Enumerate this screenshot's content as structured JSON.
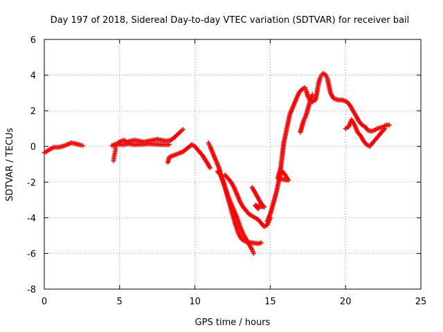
{
  "chart_data": {
    "type": "scatter",
    "title": "Day 197 of 2018, Sidereal Day-to-day VTEC variation (SDTVAR) for receiver bail",
    "xlabel": "GPS time / hours",
    "ylabel": "SDTVAR / TECUs",
    "xlim": [
      0,
      25
    ],
    "ylim": [
      -8,
      6
    ],
    "x_ticks": [
      0,
      5,
      10,
      15,
      20,
      25
    ],
    "y_ticks": [
      -8,
      -6,
      -4,
      -2,
      0,
      2,
      4,
      6
    ],
    "grid": true,
    "marker": "+",
    "color": "#ff0000",
    "series": [
      {
        "points": [
          [
            0.0,
            -0.35
          ],
          [
            0.3,
            -0.2
          ],
          [
            0.6,
            -0.05
          ],
          [
            0.9,
            -0.05
          ],
          [
            1.2,
            0.0
          ],
          [
            1.5,
            0.1
          ],
          [
            1.8,
            0.2
          ],
          [
            2.1,
            0.15
          ],
          [
            2.4,
            0.08
          ],
          [
            2.55,
            0.05
          ]
        ]
      },
      {
        "points": [
          [
            4.6,
            -0.8
          ],
          [
            4.65,
            -0.5
          ],
          [
            4.7,
            -0.3
          ],
          [
            4.75,
            0.0
          ],
          [
            4.8,
            0.1
          ],
          [
            4.9,
            0.2
          ],
          [
            5.1,
            0.3
          ],
          [
            5.3,
            0.35
          ],
          [
            5.5,
            0.25
          ],
          [
            5.7,
            0.3
          ],
          [
            6.0,
            0.35
          ],
          [
            6.3,
            0.3
          ],
          [
            6.6,
            0.25
          ],
          [
            6.9,
            0.3
          ],
          [
            7.2,
            0.35
          ],
          [
            7.5,
            0.4
          ],
          [
            7.8,
            0.35
          ],
          [
            8.1,
            0.3
          ],
          [
            8.4,
            0.35
          ],
          [
            8.7,
            0.55
          ],
          [
            9.0,
            0.8
          ],
          [
            9.2,
            0.95
          ],
          [
            4.5,
            0.05
          ],
          [
            4.8,
            0.15
          ],
          [
            5.2,
            0.1
          ],
          [
            5.6,
            0.15
          ],
          [
            6.0,
            0.1
          ],
          [
            6.5,
            0.12
          ],
          [
            7.0,
            0.15
          ],
          [
            7.5,
            0.12
          ],
          [
            8.0,
            0.1
          ],
          [
            8.3,
            0.1
          ]
        ]
      },
      {
        "points": [
          [
            8.2,
            -0.9
          ],
          [
            8.3,
            -0.6
          ],
          [
            8.6,
            -0.5
          ],
          [
            8.9,
            -0.4
          ],
          [
            9.2,
            -0.3
          ],
          [
            9.5,
            -0.1
          ],
          [
            9.8,
            0.1
          ],
          [
            10.0,
            0.0
          ],
          [
            10.2,
            -0.2
          ],
          [
            10.5,
            -0.5
          ],
          [
            10.8,
            -0.9
          ],
          [
            11.0,
            -1.2
          ]
        ]
      },
      {
        "points": [
          [
            10.9,
            0.2
          ],
          [
            11.0,
            0.0
          ],
          [
            11.2,
            -0.4
          ],
          [
            11.4,
            -0.8
          ],
          [
            11.6,
            -1.2
          ],
          [
            11.8,
            -1.8
          ],
          [
            12.0,
            -2.3
          ],
          [
            12.2,
            -2.8
          ],
          [
            12.4,
            -3.2
          ],
          [
            12.6,
            -3.6
          ],
          [
            12.8,
            -4.0
          ],
          [
            13.0,
            -4.5
          ],
          [
            13.2,
            -4.9
          ],
          [
            13.4,
            -5.2
          ],
          [
            13.6,
            -5.5
          ],
          [
            13.8,
            -5.8
          ],
          [
            13.9,
            -6.0
          ],
          [
            12.0,
            -1.6
          ],
          [
            12.2,
            -1.8
          ],
          [
            12.4,
            -2.0
          ],
          [
            12.6,
            -2.3
          ],
          [
            12.8,
            -2.7
          ],
          [
            13.0,
            -3.1
          ],
          [
            13.2,
            -3.4
          ],
          [
            13.4,
            -3.6
          ],
          [
            13.6,
            -3.8
          ],
          [
            13.8,
            -3.9
          ],
          [
            14.0,
            -4.0
          ],
          [
            14.2,
            -4.1
          ],
          [
            14.4,
            -4.3
          ],
          [
            14.6,
            -4.5
          ],
          [
            14.8,
            -4.4
          ],
          [
            15.0,
            -4.0
          ],
          [
            11.5,
            -1.4
          ],
          [
            11.7,
            -1.6
          ],
          [
            11.9,
            -2.0
          ],
          [
            12.1,
            -2.6
          ],
          [
            12.3,
            -3.2
          ],
          [
            12.5,
            -3.8
          ],
          [
            12.7,
            -4.4
          ],
          [
            12.9,
            -4.9
          ],
          [
            13.1,
            -5.2
          ],
          [
            13.4,
            -5.35
          ],
          [
            13.8,
            -5.4
          ],
          [
            14.2,
            -5.45
          ],
          [
            14.4,
            -5.4
          ],
          [
            13.8,
            -2.3
          ],
          [
            14.0,
            -2.6
          ],
          [
            14.2,
            -2.9
          ],
          [
            14.4,
            -3.2
          ],
          [
            14.6,
            -3.4
          ],
          [
            14.0,
            -3.3
          ],
          [
            14.2,
            -3.5
          ]
        ]
      },
      {
        "points": [
          [
            14.8,
            -4.2
          ],
          [
            15.0,
            -3.8
          ],
          [
            15.1,
            -3.5
          ],
          [
            15.2,
            -3.2
          ],
          [
            15.3,
            -2.9
          ],
          [
            15.4,
            -2.6
          ],
          [
            15.5,
            -2.2
          ],
          [
            15.6,
            -1.8
          ],
          [
            15.7,
            -1.5
          ],
          [
            15.8,
            -1.4
          ],
          [
            16.0,
            -1.6
          ],
          [
            16.2,
            -1.9
          ],
          [
            15.5,
            -1.8
          ],
          [
            15.7,
            -1.2
          ],
          [
            15.8,
            -0.5
          ],
          [
            15.9,
            0.2
          ],
          [
            16.0,
            0.6
          ],
          [
            16.1,
            1.0
          ],
          [
            16.2,
            1.4
          ],
          [
            16.3,
            1.8
          ],
          [
            16.5,
            2.2
          ],
          [
            16.7,
            2.6
          ],
          [
            16.9,
            3.0
          ],
          [
            17.1,
            3.2
          ],
          [
            17.3,
            3.3
          ],
          [
            17.4,
            3.1
          ],
          [
            17.5,
            2.8
          ],
          [
            17.6,
            2.6
          ],
          [
            17.8,
            2.5
          ],
          [
            18.0,
            2.6
          ],
          [
            18.1,
            3.0
          ],
          [
            18.2,
            3.5
          ],
          [
            18.3,
            3.8
          ],
          [
            18.4,
            4.0
          ],
          [
            18.5,
            4.1
          ],
          [
            18.7,
            4.0
          ],
          [
            18.8,
            3.8
          ],
          [
            18.9,
            3.4
          ],
          [
            19.0,
            3.0
          ],
          [
            19.2,
            2.7
          ],
          [
            19.5,
            2.6
          ],
          [
            19.8,
            2.6
          ],
          [
            20.1,
            2.5
          ],
          [
            20.3,
            2.3
          ],
          [
            20.5,
            2.0
          ],
          [
            20.7,
            1.7
          ],
          [
            20.9,
            1.4
          ],
          [
            21.1,
            1.2
          ],
          [
            21.3,
            1.1
          ],
          [
            21.5,
            0.9
          ],
          [
            21.7,
            0.85
          ],
          [
            21.9,
            0.9
          ],
          [
            22.1,
            1.0
          ],
          [
            22.3,
            1.05
          ],
          [
            22.5,
            1.1
          ],
          [
            22.7,
            1.2
          ],
          [
            22.9,
            1.2
          ],
          [
            17.0,
            0.8
          ],
          [
            17.2,
            1.4
          ],
          [
            17.4,
            1.8
          ],
          [
            17.6,
            2.4
          ],
          [
            17.8,
            2.9
          ],
          [
            20.0,
            1.0
          ],
          [
            20.2,
            1.1
          ],
          [
            20.4,
            1.5
          ],
          [
            20.6,
            1.2
          ],
          [
            20.8,
            0.8
          ],
          [
            21.0,
            0.6
          ],
          [
            21.2,
            0.3
          ],
          [
            21.4,
            0.1
          ],
          [
            21.6,
            0.0
          ],
          [
            21.8,
            0.2
          ],
          [
            22.0,
            0.4
          ],
          [
            22.2,
            0.6
          ],
          [
            22.4,
            0.8
          ],
          [
            22.6,
            1.0
          ]
        ]
      }
    ]
  }
}
